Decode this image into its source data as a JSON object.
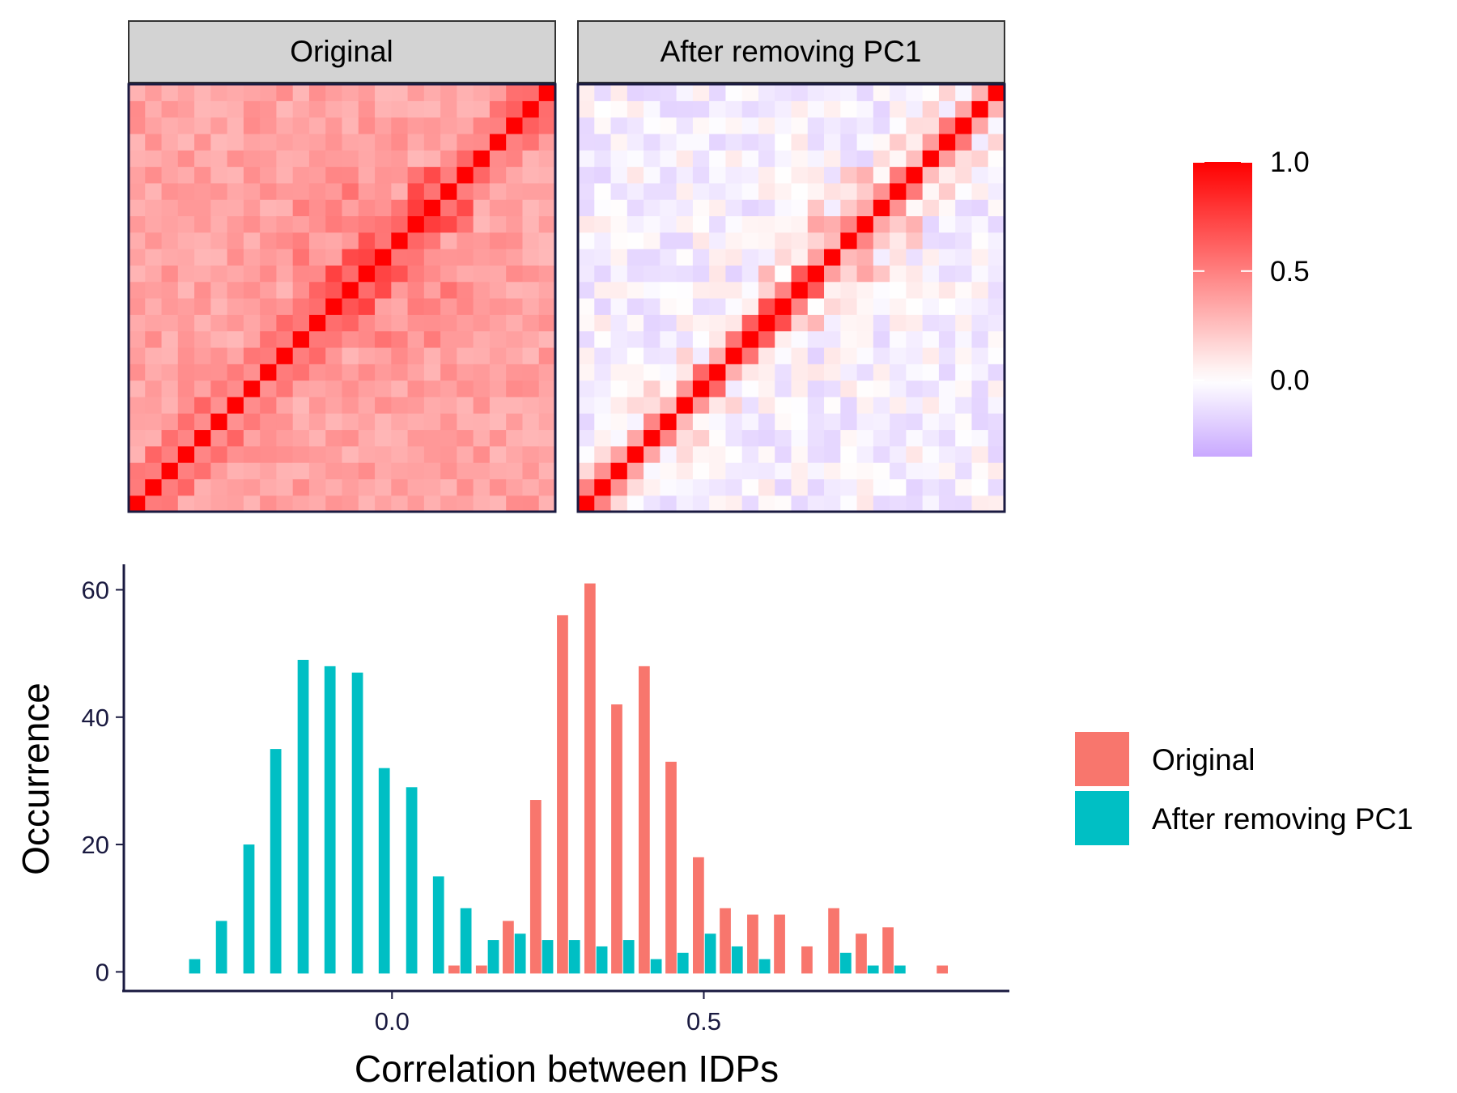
{
  "colors": {
    "original": "#F8766D",
    "after": "#00BFC4",
    "high": "#FF0000",
    "mid": "#FFFFFF",
    "low": "#C9A8FF",
    "strip_bg": "#D3D3D3",
    "axis": "#1a1a40"
  },
  "heatmap": {
    "panels": [
      {
        "key": "original",
        "label": "Original"
      },
      {
        "key": "after",
        "label": "After removing PC1"
      }
    ],
    "colorbar": {
      "ticks": [
        {
          "value": 1.0,
          "label": "1.0"
        },
        {
          "value": 0.5,
          "label": "0.5"
        },
        {
          "value": 0.0,
          "label": "0.0"
        }
      ],
      "min": -0.35,
      "max": 1.0
    }
  },
  "chart_data": [
    {
      "type": "heatmap",
      "size": 26,
      "panels": [
        "Original",
        "After removing PC1"
      ],
      "value_range": [
        -0.35,
        1.0
      ],
      "description_note": "Correlation matrices between 26 IDPs; diagonal = 1.0; original off-diagonal ~0.2–0.7, after removing PC1 ~ -0.3–0.7"
    },
    {
      "type": "bar",
      "xlabel": "Correlation between IDPs",
      "ylabel": "Occurrence",
      "xlim": [
        -0.43,
        0.99
      ],
      "ylim": [
        -3,
        64
      ],
      "xticks": [
        {
          "value": 0.0,
          "label": "0.0"
        },
        {
          "value": 0.5,
          "label": "0.5"
        }
      ],
      "yticks": [
        {
          "value": 0,
          "label": "0"
        },
        {
          "value": 20,
          "label": "20"
        },
        {
          "value": 40,
          "label": "40"
        },
        {
          "value": 60,
          "label": "60"
        }
      ],
      "bin_width": 0.0435,
      "series": [
        {
          "name": "Original",
          "color": "#F8766D",
          "x": [
            0.109,
            0.153,
            0.196,
            0.24,
            0.283,
            0.327,
            0.37,
            0.414,
            0.457,
            0.501,
            0.544,
            0.588,
            0.631,
            0.675,
            0.718,
            0.762,
            0.805,
            0.892
          ],
          "values": [
            1,
            1,
            8,
            27,
            56,
            61,
            42,
            48,
            33,
            18,
            10,
            9,
            9,
            4,
            10,
            6,
            7,
            1
          ]
        },
        {
          "name": "After removing PC1",
          "color": "#00BFC4",
          "x": [
            -0.326,
            -0.283,
            -0.239,
            -0.196,
            -0.152,
            -0.109,
            -0.065,
            -0.022,
            0.022,
            0.065,
            0.109,
            0.153,
            0.196,
            0.24,
            0.283,
            0.327,
            0.37,
            0.414,
            0.457,
            0.501,
            0.544,
            0.588,
            0.718,
            0.762,
            0.805
          ],
          "values": [
            2,
            8,
            20,
            35,
            49,
            48,
            47,
            32,
            29,
            15,
            10,
            5,
            6,
            5,
            5,
            4,
            5,
            2,
            3,
            6,
            4,
            2,
            3,
            1,
            1
          ]
        }
      ]
    }
  ]
}
